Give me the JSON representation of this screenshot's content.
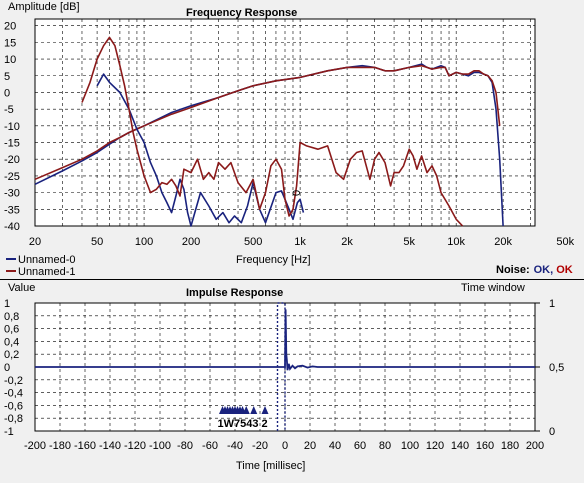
{
  "colors": {
    "bg": "#f0f0f0",
    "series0": "#1a237e",
    "series1": "#8b1a1a",
    "ok0": "#1a237e",
    "ok1": "#b00000"
  },
  "legend": {
    "items": [
      {
        "label": "Unnamed-0",
        "color": "#1a237e"
      },
      {
        "label": "Unnamed-1",
        "color": "#8b1a1a"
      }
    ],
    "noise_label": "Noise:",
    "noise_ok_0": "OK",
    "noise_sep": ",",
    "noise_ok_1": "OK"
  },
  "chart_data": [
    {
      "type": "line",
      "title": "Frequency Response",
      "xlabel": "Frequency [Hz]",
      "ylabel": "Amplitude [dB]",
      "xscale": "log",
      "xlim": [
        20,
        32000
      ],
      "ylim": [
        -40,
        22
      ],
      "grid": true,
      "xticks": [
        {
          "v": 20,
          "l": "20"
        },
        {
          "v": 50,
          "l": "50"
        },
        {
          "v": 100,
          "l": "100"
        },
        {
          "v": 200,
          "l": "200"
        },
        {
          "v": 500,
          "l": "500"
        },
        {
          "v": 1000,
          "l": "1k"
        },
        {
          "v": 2000,
          "l": "2k"
        },
        {
          "v": 5000,
          "l": "5k"
        },
        {
          "v": 10000,
          "l": "10k"
        },
        {
          "v": 20000,
          "l": "20k"
        },
        {
          "v": 50000,
          "l": "50k"
        }
      ],
      "yticks": [
        20,
        15,
        10,
        5,
        0,
        -5,
        -10,
        -15,
        -20,
        -25,
        -30,
        -35,
        -40
      ],
      "series": [
        {
          "name": "Unnamed-0",
          "color": "#1a237e",
          "points": [
            [
              20,
              -27.5
            ],
            [
              30,
              -23.5
            ],
            [
              40,
              -20.5
            ],
            [
              50,
              -18
            ],
            [
              60,
              -15.5
            ],
            [
              70,
              -13.5
            ],
            [
              80,
              -12
            ],
            [
              100,
              -10
            ],
            [
              150,
              -6
            ],
            [
              200,
              -4
            ],
            [
              300,
              -1.5
            ],
            [
              400,
              0.5
            ],
            [
              500,
              2
            ],
            [
              700,
              3.5
            ],
            [
              1000,
              4.5
            ],
            [
              1500,
              6.5
            ],
            [
              2000,
              7.5
            ],
            [
              2500,
              8
            ],
            [
              3000,
              7.5
            ],
            [
              3500,
              6.5
            ],
            [
              4000,
              6.5
            ],
            [
              5000,
              7.5
            ],
            [
              6000,
              8.5
            ],
            [
              6500,
              7.5
            ],
            [
              7000,
              7
            ],
            [
              8000,
              8
            ],
            [
              8500,
              7.5
            ],
            [
              9000,
              5
            ],
            [
              10000,
              6
            ],
            [
              11000,
              5.5
            ],
            [
              12000,
              5
            ],
            [
              13000,
              6
            ],
            [
              14000,
              6
            ],
            [
              15000,
              5.5
            ],
            [
              16000,
              5
            ],
            [
              17000,
              3
            ],
            [
              18000,
              -5
            ],
            [
              19000,
              -20
            ],
            [
              20000,
              -40
            ]
          ]
        },
        {
          "name": "Unnamed-1",
          "color": "#8b1a1a",
          "points": [
            [
              20,
              -26
            ],
            [
              30,
              -22.5
            ],
            [
              40,
              -20
            ],
            [
              50,
              -17.5
            ],
            [
              60,
              -15
            ],
            [
              70,
              -13.5
            ],
            [
              80,
              -12
            ],
            [
              100,
              -10
            ],
            [
              150,
              -6.5
            ],
            [
              200,
              -4.5
            ],
            [
              300,
              -1.5
            ],
            [
              400,
              0.5
            ],
            [
              500,
              2
            ],
            [
              700,
              3.5
            ],
            [
              1000,
              4.5
            ],
            [
              1500,
              6.5
            ],
            [
              2000,
              7.5
            ],
            [
              2500,
              7.5
            ],
            [
              3000,
              7.5
            ],
            [
              3500,
              6.5
            ],
            [
              4000,
              6.5
            ],
            [
              5000,
              7.5
            ],
            [
              6000,
              8
            ],
            [
              6500,
              7.5
            ],
            [
              7000,
              7
            ],
            [
              8000,
              7.5
            ],
            [
              8500,
              7.5
            ],
            [
              9000,
              5
            ],
            [
              10000,
              6
            ],
            [
              11000,
              5.5
            ],
            [
              12000,
              5.5
            ],
            [
              13000,
              6.5
            ],
            [
              14000,
              6.5
            ],
            [
              15000,
              5.5
            ],
            [
              16000,
              5
            ],
            [
              17000,
              3.5
            ],
            [
              18000,
              0
            ],
            [
              19000,
              -10
            ]
          ]
        },
        {
          "name": "Unnamed-0",
          "color": "#1a237e",
          "points": [
            [
              50,
              2
            ],
            [
              55,
              5.5
            ],
            [
              60,
              3
            ],
            [
              70,
              0
            ],
            [
              80,
              -5
            ],
            [
              90,
              -11
            ],
            [
              100,
              -15
            ],
            [
              110,
              -21
            ],
            [
              120,
              -25
            ],
            [
              130,
              -30
            ],
            [
              140,
              -33
            ],
            [
              150,
              -36
            ],
            [
              160,
              -31
            ],
            [
              170,
              -26
            ],
            [
              180,
              -29
            ],
            [
              190,
              -36
            ],
            [
              200,
              -40
            ],
            [
              230,
              -30
            ],
            [
              260,
              -34
            ],
            [
              290,
              -38
            ],
            [
              320,
              -36
            ],
            [
              350,
              -39
            ],
            [
              380,
              -37
            ],
            [
              420,
              -39
            ],
            [
              460,
              -34
            ],
            [
              500,
              -27
            ],
            [
              550,
              -35
            ],
            [
              600,
              -39
            ],
            [
              700,
              -30
            ],
            [
              760,
              -29.5
            ],
            [
              800,
              -32
            ],
            [
              850,
              -35
            ],
            [
              900,
              -38
            ],
            [
              960,
              -33
            ],
            [
              1000,
              -32
            ],
            [
              1050,
              -36
            ]
          ]
        },
        {
          "name": "Unnamed-1",
          "color": "#8b1a1a",
          "points": [
            [
              40,
              -3
            ],
            [
              45,
              3
            ],
            [
              50,
              10
            ],
            [
              55,
              14
            ],
            [
              60,
              16.5
            ],
            [
              65,
              14
            ],
            [
              70,
              8
            ],
            [
              75,
              2
            ],
            [
              80,
              -5
            ],
            [
              85,
              -12
            ],
            [
              90,
              -17
            ],
            [
              100,
              -25
            ],
            [
              110,
              -30
            ],
            [
              120,
              -29
            ],
            [
              130,
              -27
            ],
            [
              140,
              -27.5
            ],
            [
              150,
              -26
            ],
            [
              160,
              -28
            ],
            [
              170,
              -31
            ],
            [
              180,
              -23
            ],
            [
              200,
              -24
            ],
            [
              220,
              -20
            ],
            [
              240,
              -26
            ],
            [
              260,
              -24
            ],
            [
              280,
              -26
            ],
            [
              300,
              -21
            ],
            [
              330,
              -23
            ],
            [
              360,
              -21
            ],
            [
              400,
              -27
            ],
            [
              450,
              -30
            ],
            [
              500,
              -26
            ],
            [
              550,
              -35
            ],
            [
              600,
              -30
            ],
            [
              650,
              -22
            ],
            [
              700,
              -20
            ],
            [
              760,
              -23
            ],
            [
              800,
              -32
            ],
            [
              850,
              -37
            ],
            [
              900,
              -35
            ],
            [
              950,
              -28
            ],
            [
              1000,
              -15
            ],
            [
              1100,
              -16
            ],
            [
              1300,
              -17
            ],
            [
              1500,
              -16
            ],
            [
              1700,
              -24
            ],
            [
              1900,
              -26
            ],
            [
              2100,
              -20
            ],
            [
              2300,
              -18
            ],
            [
              2500,
              -17.5
            ],
            [
              2800,
              -26
            ],
            [
              3000,
              -20
            ],
            [
              3200,
              -18
            ],
            [
              3500,
              -21
            ],
            [
              3800,
              -28
            ],
            [
              4000,
              -24
            ],
            [
              4300,
              -24
            ],
            [
              4600,
              -22
            ],
            [
              5000,
              -17
            ],
            [
              5300,
              -19
            ],
            [
              5600,
              -23
            ],
            [
              6000,
              -19
            ],
            [
              6500,
              -24
            ],
            [
              7000,
              -22
            ],
            [
              7500,
              -25
            ],
            [
              8000,
              -30
            ],
            [
              9000,
              -34
            ],
            [
              10000,
              -38
            ],
            [
              11000,
              -40
            ]
          ]
        }
      ],
      "markers": [
        {
          "type": "label",
          "x": 1000,
          "y": -31,
          "text": "0"
        }
      ]
    },
    {
      "type": "line",
      "title": "Impulse Response",
      "xlabel": "Time [millisec]",
      "ylabel": "Value",
      "y2label": "Time window",
      "xlim": [
        -200,
        200
      ],
      "ylim": [
        -1,
        1
      ],
      "y2lim": [
        0,
        1
      ],
      "grid": true,
      "xticks": [
        -200,
        -180,
        -160,
        -140,
        -120,
        -100,
        -80,
        -60,
        -40,
        -20,
        0,
        20,
        40,
        60,
        80,
        100,
        120,
        140,
        160,
        180,
        200
      ],
      "yticks": [
        {
          "v": 1,
          "l": "1"
        },
        {
          "v": 0.8,
          "l": "0,8"
        },
        {
          "v": 0.6,
          "l": "0,6"
        },
        {
          "v": 0.4,
          "l": "0,4"
        },
        {
          "v": 0.2,
          "l": "0,2"
        },
        {
          "v": 0,
          "l": "0"
        },
        {
          "v": -0.2,
          "l": "-0,2"
        },
        {
          "v": -0.4,
          "l": "-0,4"
        },
        {
          "v": -0.6,
          "l": "-0,6"
        },
        {
          "v": -0.8,
          "l": "-0,8"
        },
        {
          "v": -1,
          "l": "-1"
        }
      ],
      "y2ticks": [
        {
          "v": 1,
          "l": "1"
        },
        {
          "v": 0.5,
          "l": "0,5"
        },
        {
          "v": 0,
          "l": "0"
        }
      ],
      "series": [
        {
          "name": "Unnamed-0",
          "color": "#1a237e",
          "points": [
            [
              -200,
              0
            ],
            [
              -1,
              0
            ],
            [
              0,
              0
            ],
            [
              0.5,
              0.9
            ],
            [
              1,
              0.2
            ],
            [
              1.5,
              0.1
            ],
            [
              2,
              -0.05
            ],
            [
              3,
              0.05
            ],
            [
              4,
              -0.03
            ],
            [
              6,
              0.02
            ],
            [
              8,
              -0.02
            ],
            [
              10,
              0.01
            ],
            [
              14,
              0.02
            ],
            [
              18,
              -0.01
            ],
            [
              22,
              0.01
            ],
            [
              26,
              0
            ],
            [
              200,
              0
            ]
          ]
        }
      ],
      "window": {
        "start": -6,
        "end": 0,
        "top": 1
      },
      "peak_markers": {
        "color": "#1a237e",
        "positions": [
          -50,
          -48,
          -46,
          -44,
          -42,
          -40,
          -38,
          -36,
          -34,
          -31,
          -25,
          -16
        ],
        "label": "1W7543 2"
      }
    }
  ]
}
